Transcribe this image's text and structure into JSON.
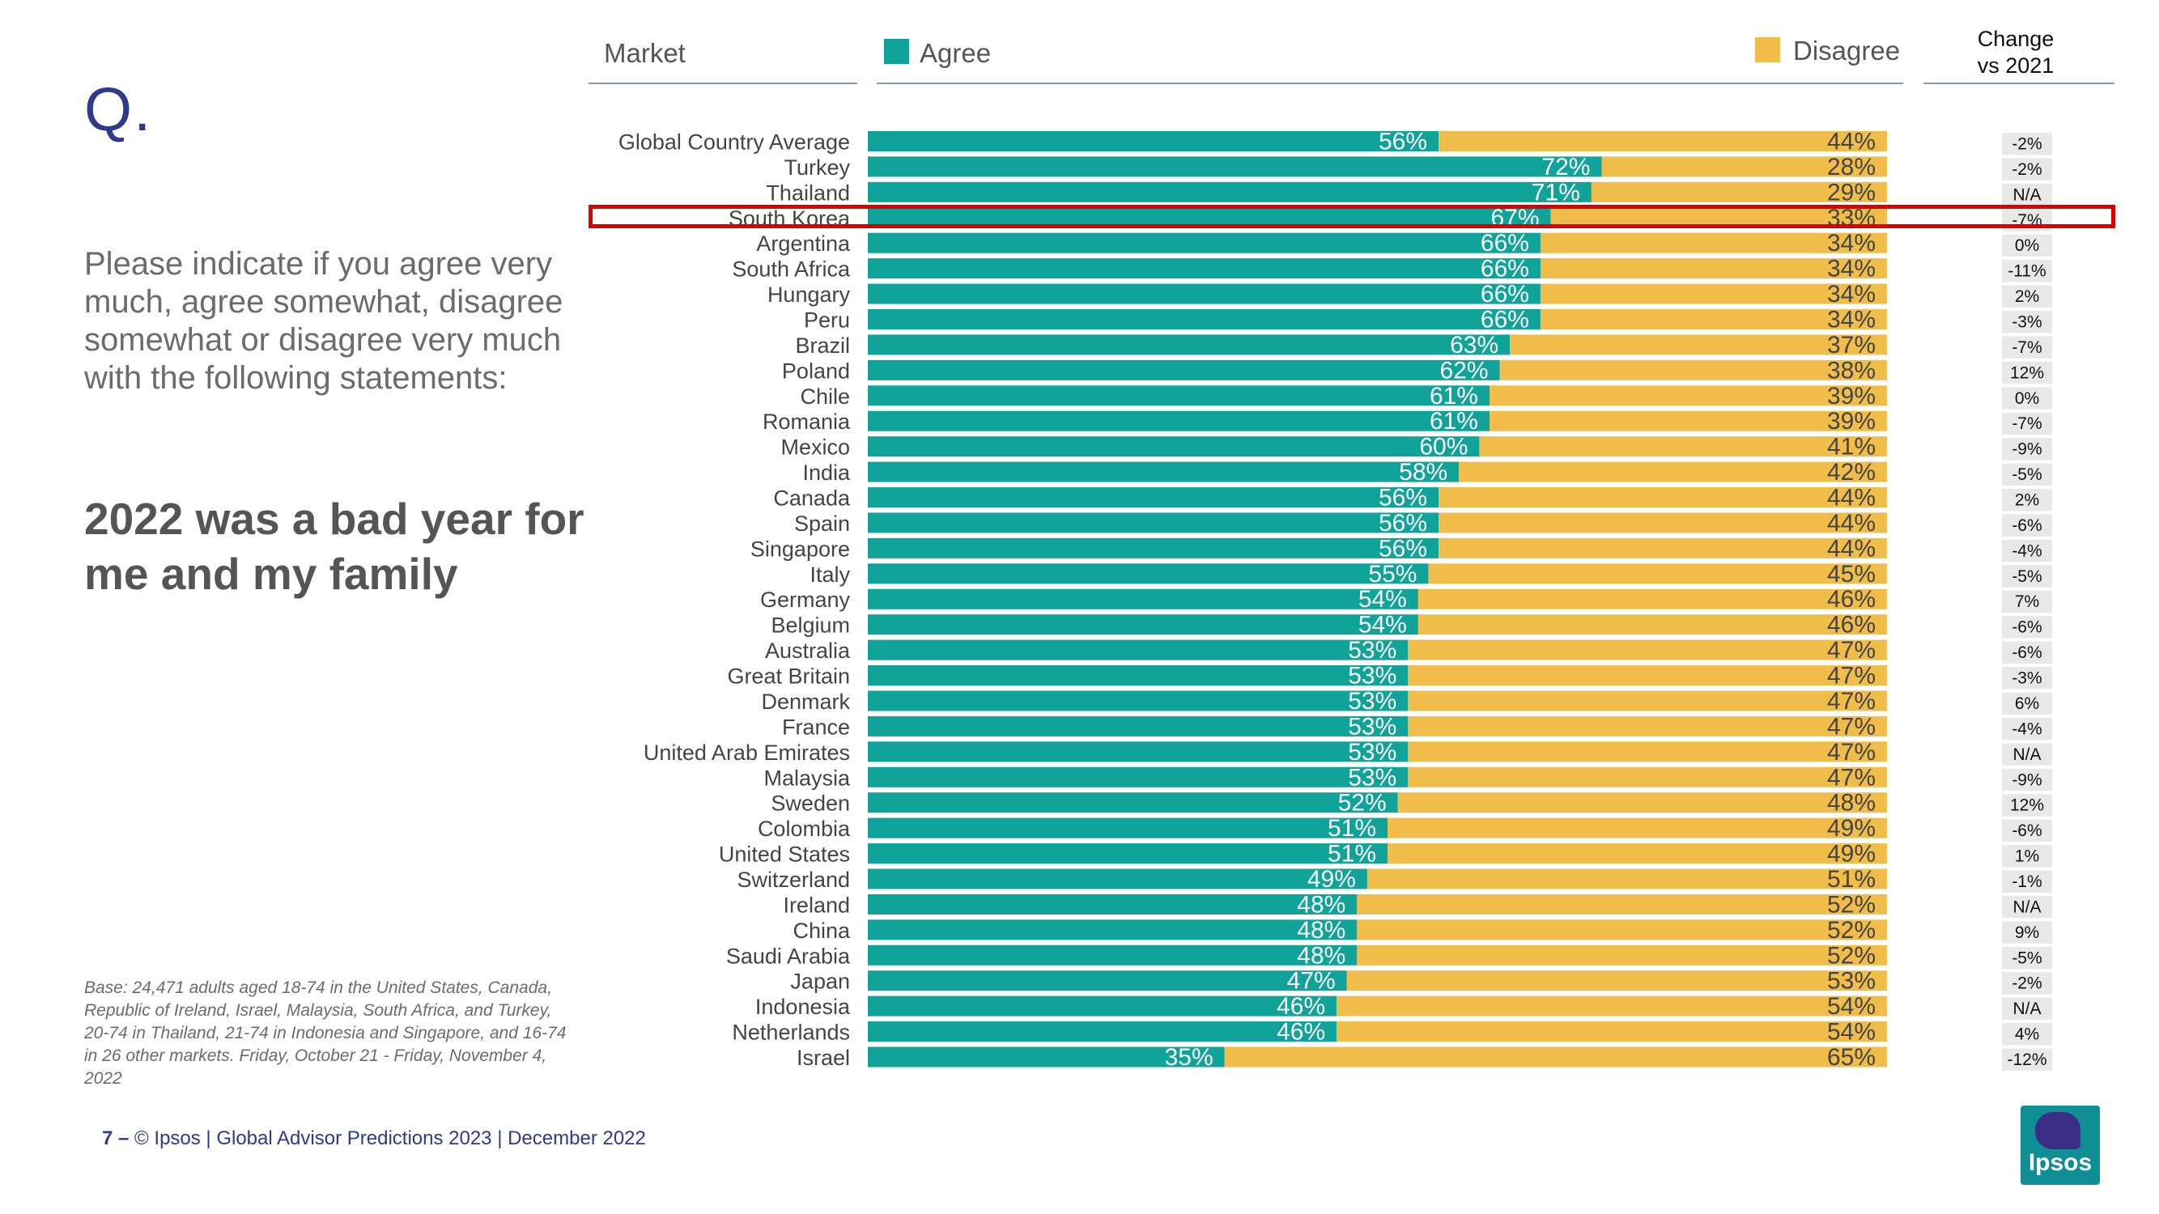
{
  "slide": {
    "q_mark": "Q.",
    "question": "Please indicate if you agree very much, agree somewhat, disagree somewhat or disagree very much with the following statements:",
    "statement": "2022 was a bad year for me and my family",
    "base_note": "Base: 24,471 adults aged 18-74 in the United States, Canada, Republic of Ireland, Israel, Malaysia, South Africa, and Turkey, 20-74 in Thailand, 21-74 in Indonesia and Singapore, and 16-74 in 26 other markets. Friday, October 21 -  Friday, November 4, 2022",
    "footer_page": "7 –",
    "footer_text": "© Ipsos | Global Advisor Predictions 2023 | December 2022",
    "logo_text": "Ipsos"
  },
  "header": {
    "market": "Market",
    "agree": "Agree",
    "disagree": "Disagree",
    "change_line1": "Change",
    "change_line2": "vs 2021"
  },
  "colors": {
    "agree": "#0fa39a",
    "disagree": "#f0bd4b",
    "highlight": "#e00000",
    "title": "#2e3a8c",
    "change_bg": "#e8e8e8"
  },
  "chart_data": {
    "type": "bar",
    "orientation": "horizontal-stacked-100",
    "title": "2022 was a bad year for me and my family",
    "highlight": "South Korea",
    "categories": [
      "Global Country Average",
      "Turkey",
      "Thailand",
      "South Korea",
      "Argentina",
      "South Africa",
      "Hungary",
      "Peru",
      "Brazil",
      "Poland",
      "Chile",
      "Romania",
      "Mexico",
      "India",
      "Canada",
      "Spain",
      "Singapore",
      "Italy",
      "Germany",
      "Belgium",
      "Australia",
      "Great Britain",
      "Denmark",
      "France",
      "United Arab Emirates",
      "Malaysia",
      "Sweden",
      "Colombia",
      "United States",
      "Switzerland",
      "Ireland",
      "China",
      "Saudi Arabia",
      "Japan",
      "Indonesia",
      "Netherlands",
      "Israel"
    ],
    "series": [
      {
        "name": "Agree",
        "values": [
          56,
          72,
          71,
          67,
          66,
          66,
          66,
          66,
          63,
          62,
          61,
          61,
          60,
          58,
          56,
          56,
          56,
          55,
          54,
          54,
          53,
          53,
          53,
          53,
          53,
          53,
          52,
          51,
          51,
          49,
          48,
          48,
          48,
          47,
          46,
          46,
          35
        ]
      },
      {
        "name": "Disagree",
        "values": [
          44,
          28,
          29,
          33,
          34,
          34,
          34,
          34,
          37,
          38,
          39,
          39,
          41,
          42,
          44,
          44,
          44,
          45,
          46,
          46,
          47,
          47,
          47,
          47,
          47,
          47,
          48,
          49,
          49,
          51,
          52,
          52,
          52,
          53,
          54,
          54,
          65
        ]
      }
    ],
    "agree_labels": [
      "56%",
      "72%",
      "71%",
      "67%",
      "66%",
      "66%",
      "66%",
      "66%",
      "63%",
      "62%",
      "61%",
      "61%",
      "60%",
      "58%",
      "56%",
      "56%",
      "56%",
      "55%",
      "54%",
      "54%",
      "53%",
      "53%",
      "53%",
      "53%",
      "53%",
      "53%",
      "52%",
      "51%",
      "51%",
      "49%",
      "48%",
      "48%",
      "48%",
      "47%",
      "46%",
      "46%",
      "35%"
    ],
    "disagree_labels": [
      "44%",
      "28%",
      "29%",
      "33%",
      "34%",
      "34%",
      "34%",
      "34%",
      "37%",
      "38%",
      "39%",
      "39%",
      "41%",
      "42%",
      "44%",
      "44%",
      "44%",
      "45%",
      "46%",
      "46%",
      "47%",
      "47%",
      "47%",
      "47%",
      "47%",
      "47%",
      "48%",
      "49%",
      "49%",
      "51%",
      "52%",
      "52%",
      "52%",
      "53%",
      "54%",
      "54%",
      "65%"
    ],
    "change_vs_2021": [
      "-2%",
      "-2%",
      "N/A",
      "-7%",
      "0%",
      "-11%",
      "2%",
      "-3%",
      "-7%",
      "12%",
      "0%",
      "-7%",
      "-9%",
      "-5%",
      "2%",
      "-6%",
      "-4%",
      "-5%",
      "7%",
      "-6%",
      "-6%",
      "-3%",
      "6%",
      "-4%",
      "N/A",
      "-9%",
      "12%",
      "-6%",
      "1%",
      "-1%",
      "N/A",
      "9%",
      "-5%",
      "-2%",
      "N/A",
      "4%",
      "-12%"
    ],
    "xlim": [
      0,
      100
    ],
    "legend": "top"
  }
}
